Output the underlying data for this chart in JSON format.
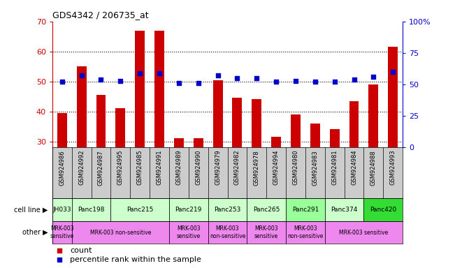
{
  "title": "GDS4342 / 206735_at",
  "samples": [
    "GSM924986",
    "GSM924992",
    "GSM924987",
    "GSM924995",
    "GSM924985",
    "GSM924991",
    "GSM924989",
    "GSM924990",
    "GSM924979",
    "GSM924982",
    "GSM924978",
    "GSM924994",
    "GSM924980",
    "GSM924983",
    "GSM924981",
    "GSM924984",
    "GSM924988",
    "GSM924993"
  ],
  "counts": [
    39.5,
    55.0,
    45.5,
    41.0,
    67.0,
    67.0,
    31.0,
    31.0,
    50.5,
    44.5,
    44.0,
    31.5,
    39.0,
    36.0,
    34.0,
    43.5,
    49.0,
    61.5
  ],
  "percentiles": [
    52,
    57,
    54,
    53,
    59,
    59,
    51,
    51,
    57,
    55,
    55,
    52,
    53,
    52,
    52,
    54,
    56,
    60
  ],
  "cell_lines": [
    {
      "label": "JH033",
      "start": 0,
      "end": 1,
      "color": "#ccffcc"
    },
    {
      "label": "Panc198",
      "start": 1,
      "end": 3,
      "color": "#ccffcc"
    },
    {
      "label": "Panc215",
      "start": 3,
      "end": 6,
      "color": "#ccffcc"
    },
    {
      "label": "Panc219",
      "start": 6,
      "end": 8,
      "color": "#ccffcc"
    },
    {
      "label": "Panc253",
      "start": 8,
      "end": 10,
      "color": "#ccffcc"
    },
    {
      "label": "Panc265",
      "start": 10,
      "end": 12,
      "color": "#ccffcc"
    },
    {
      "label": "Panc291",
      "start": 12,
      "end": 14,
      "color": "#99ff99"
    },
    {
      "label": "Panc374",
      "start": 14,
      "end": 16,
      "color": "#ccffcc"
    },
    {
      "label": "Panc420",
      "start": 16,
      "end": 18,
      "color": "#33dd33"
    }
  ],
  "other_rows": [
    {
      "label": "MRK-003\nsensitive",
      "start": 0,
      "end": 1,
      "color": "#ee88ee"
    },
    {
      "label": "MRK-003 non-sensitive",
      "start": 1,
      "end": 6,
      "color": "#ee88ee"
    },
    {
      "label": "MRK-003\nsensitive",
      "start": 6,
      "end": 8,
      "color": "#ee88ee"
    },
    {
      "label": "MRK-003\nnon-sensitive",
      "start": 8,
      "end": 10,
      "color": "#ee88ee"
    },
    {
      "label": "MRK-003\nsensitive",
      "start": 10,
      "end": 12,
      "color": "#ee88ee"
    },
    {
      "label": "MRK-003\nnon-sensitive",
      "start": 12,
      "end": 14,
      "color": "#ee88ee"
    },
    {
      "label": "MRK-003 sensitive",
      "start": 14,
      "end": 18,
      "color": "#ee88ee"
    }
  ],
  "ylim_left": [
    28,
    70
  ],
  "ylim_right": [
    0,
    100
  ],
  "yticks_left": [
    30,
    40,
    50,
    60,
    70
  ],
  "yticks_right": [
    0,
    25,
    50,
    75,
    100
  ],
  "bar_color": "#cc0000",
  "scatter_color": "#0000cc",
  "left_axis_color": "#cc0000",
  "right_axis_color": "#0000cc",
  "bg_color": "#ffffff",
  "tick_label_bg": "#cccccc"
}
